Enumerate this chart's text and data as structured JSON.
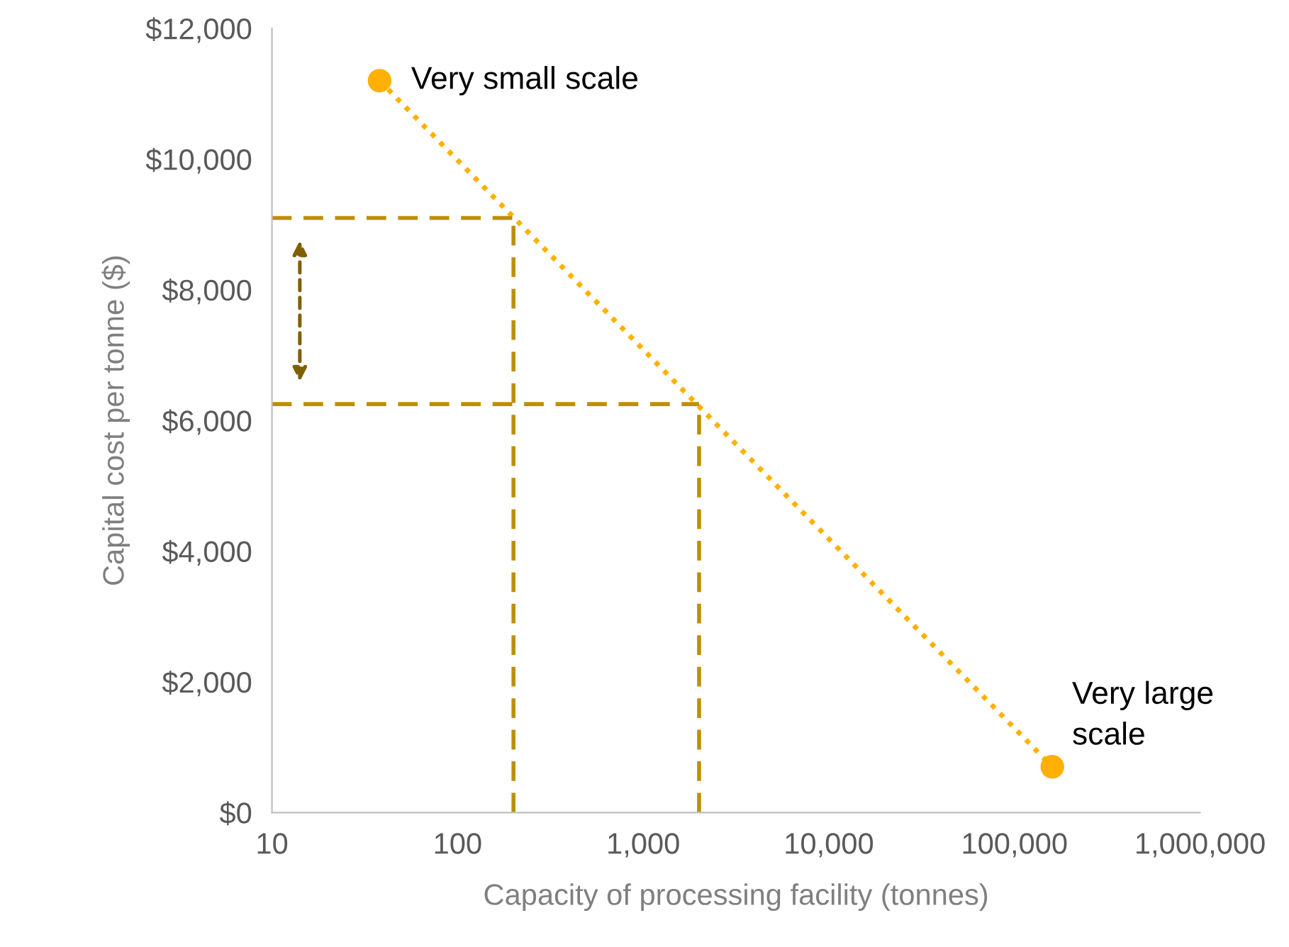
{
  "chart_data": {
    "type": "line",
    "xlabel": "Capacity of processing facility (tonnes)",
    "ylabel": "Capital cost per tonne ($)",
    "log": "x",
    "xlim": [
      10,
      1000000
    ],
    "ylim": [
      0,
      12000
    ],
    "xticks": [
      {
        "value": 10,
        "label": "10"
      },
      {
        "value": 100,
        "label": "100"
      },
      {
        "value": 1000,
        "label": "1,000"
      },
      {
        "value": 10000,
        "label": "10,000"
      },
      {
        "value": 100000,
        "label": "100,000"
      },
      {
        "value": 1000000,
        "label": "1,000,000"
      }
    ],
    "yticks": [
      {
        "value": 0,
        "label": "$0"
      },
      {
        "value": 2000,
        "label": "$2,000"
      },
      {
        "value": 4000,
        "label": "$4,000"
      },
      {
        "value": 6000,
        "label": "$6,000"
      },
      {
        "value": 8000,
        "label": "$8,000"
      },
      {
        "value": 10000,
        "label": "$10,000"
      },
      {
        "value": 12000,
        "label": "$12,000"
      }
    ],
    "grid": false,
    "series": [
      {
        "color": "#ffb000",
        "x": [
          38,
          160000
        ],
        "values": [
          11200,
          700
        ],
        "marker": "circle",
        "line_style": "dotted"
      },
      {
        "color": "#bf8f00",
        "x": [
          200,
          200
        ],
        "values": [
          0,
          9100
        ],
        "marker": "none",
        "line_style": "dashed"
      },
      {
        "color": "#bf8f00",
        "x": [
          10,
          200
        ],
        "values": [
          9100,
          9100
        ],
        "marker": "none",
        "line_style": "dashed"
      },
      {
        "color": "#bf8f00",
        "x": [
          2000,
          2000
        ],
        "values": [
          0,
          6250
        ],
        "marker": "none",
        "line_style": "dashed"
      },
      {
        "color": "#bf8f00",
        "x": [
          10,
          2000
        ],
        "values": [
          6250,
          6250
        ],
        "marker": "none",
        "line_style": "dashed"
      }
    ],
    "annotations": [
      {
        "text": "Very small scale",
        "x": 38,
        "y": 11200
      },
      {
        "text": "Very large\nscale",
        "x": 160000,
        "y": 700
      }
    ]
  }
}
